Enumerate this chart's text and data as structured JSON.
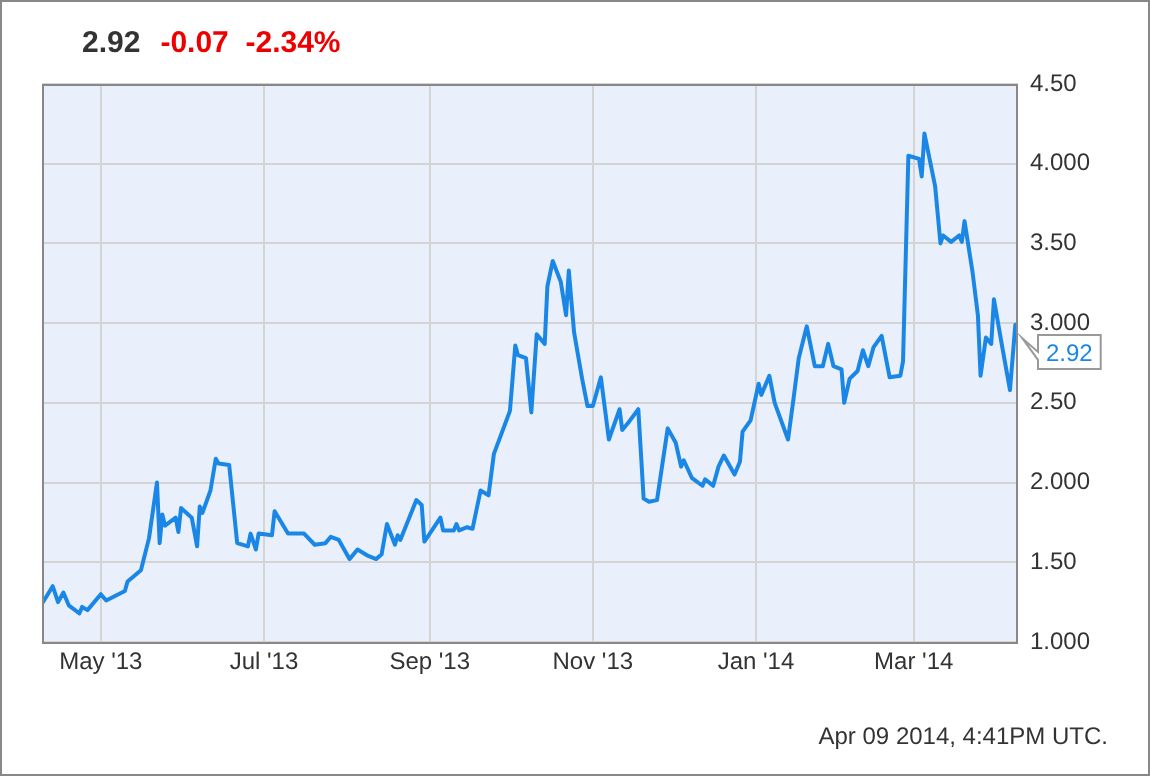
{
  "chart_data": {
    "type": "line",
    "title": "2.92",
    "subtitle": "-0.07  -2.34%",
    "x": [
      "2013-04-09",
      "2013-04-13",
      "2013-04-15",
      "2013-04-17",
      "2013-04-19",
      "2013-04-23",
      "2013-04-24",
      "2013-04-26",
      "2013-05-01",
      "2013-05-03",
      "2013-05-10",
      "2013-05-11",
      "2013-05-16",
      "2013-05-19",
      "2013-05-22",
      "2013-05-23",
      "2013-05-24",
      "2013-05-25",
      "2013-05-29",
      "2013-05-30",
      "2013-05-31",
      "2013-06-04",
      "2013-06-06",
      "2013-06-07",
      "2013-06-08",
      "2013-06-11",
      "2013-06-13",
      "2013-06-14",
      "2013-06-18",
      "2013-06-21",
      "2013-06-25",
      "2013-06-26",
      "2013-06-28",
      "2013-06-29",
      "2013-07-04",
      "2013-07-05",
      "2013-07-10",
      "2013-07-16",
      "2013-07-20",
      "2013-07-24",
      "2013-07-26",
      "2013-07-29",
      "2013-08-02",
      "2013-08-05",
      "2013-08-09",
      "2013-08-12",
      "2013-08-14",
      "2013-08-16",
      "2013-08-19",
      "2013-08-20",
      "2013-08-21",
      "2013-08-27",
      "2013-08-29",
      "2013-08-30",
      "2013-09-05",
      "2013-09-06",
      "2013-09-10",
      "2013-09-11",
      "2013-09-12",
      "2013-09-15",
      "2013-09-17",
      "2013-09-20",
      "2013-09-23",
      "2013-09-25",
      "2013-10-01",
      "2013-10-03",
      "2013-10-04",
      "2013-10-07",
      "2013-10-09",
      "2013-10-11",
      "2013-10-14",
      "2013-10-15",
      "2013-10-17",
      "2013-10-20",
      "2013-10-22",
      "2013-10-23",
      "2013-10-25",
      "2013-10-28",
      "2013-10-30",
      "2013-11-01",
      "2013-11-04",
      "2013-11-07",
      "2013-11-11",
      "2013-11-12",
      "2013-11-14",
      "2013-11-18",
      "2013-11-20",
      "2013-11-22",
      "2013-11-25",
      "2013-11-29",
      "2013-12-02",
      "2013-12-04",
      "2013-12-05",
      "2013-12-08",
      "2013-12-12",
      "2013-12-13",
      "2013-12-16",
      "2013-12-18",
      "2013-12-20",
      "2013-12-24",
      "2013-12-26",
      "2013-12-27",
      "2013-12-30",
      "2014-01-02",
      "2014-01-03",
      "2014-01-06",
      "2014-01-08",
      "2014-01-13",
      "2014-01-15",
      "2014-01-17",
      "2014-01-20",
      "2014-01-23",
      "2014-01-26",
      "2014-01-28",
      "2014-01-30",
      "2014-02-02",
      "2014-02-03",
      "2014-02-05",
      "2014-02-08",
      "2014-02-10",
      "2014-02-12",
      "2014-02-14",
      "2014-02-17",
      "2014-02-20",
      "2014-02-24",
      "2014-02-25",
      "2014-02-27",
      "2014-03-03",
      "2014-03-04",
      "2014-03-05",
      "2014-03-09",
      "2014-03-11",
      "2014-03-12",
      "2014-03-15",
      "2014-03-18",
      "2014-03-19",
      "2014-03-20",
      "2014-03-23",
      "2014-03-25",
      "2014-03-26",
      "2014-03-28",
      "2014-03-30",
      "2014-03-31",
      "2014-04-03",
      "2014-04-06",
      "2014-04-08",
      "2014-04-09"
    ],
    "series": [
      {
        "color": "#1a87e6",
        "values": [
          1.24,
          1.35,
          1.25,
          1.31,
          1.23,
          1.18,
          1.22,
          1.2,
          1.3,
          1.26,
          1.32,
          1.38,
          1.45,
          1.65,
          2.0,
          1.62,
          1.8,
          1.73,
          1.78,
          1.69,
          1.84,
          1.78,
          1.6,
          1.85,
          1.81,
          1.95,
          2.15,
          2.12,
          2.11,
          1.62,
          1.6,
          1.68,
          1.58,
          1.68,
          1.67,
          1.82,
          1.68,
          1.68,
          1.61,
          1.62,
          1.66,
          1.64,
          1.52,
          1.58,
          1.54,
          1.52,
          1.55,
          1.74,
          1.61,
          1.67,
          1.64,
          1.89,
          1.86,
          1.63,
          1.78,
          1.7,
          1.7,
          1.74,
          1.7,
          1.72,
          1.71,
          1.95,
          1.92,
          2.18,
          2.45,
          2.86,
          2.8,
          2.78,
          2.44,
          2.93,
          2.87,
          3.23,
          3.39,
          3.26,
          3.05,
          3.33,
          2.94,
          2.65,
          2.48,
          2.48,
          2.66,
          2.27,
          2.46,
          2.33,
          2.37,
          2.46,
          1.9,
          1.88,
          1.89,
          2.34,
          2.25,
          2.1,
          2.14,
          2.03,
          1.98,
          2.02,
          1.98,
          2.1,
          2.17,
          2.05,
          2.13,
          2.32,
          2.39,
          2.62,
          2.55,
          2.67,
          2.5,
          2.27,
          2.52,
          2.78,
          2.98,
          2.73,
          2.73,
          2.87,
          2.73,
          2.71,
          2.5,
          2.65,
          2.7,
          2.83,
          2.73,
          2.85,
          2.92,
          2.66,
          2.67,
          2.76,
          4.05,
          4.03,
          3.92,
          4.19,
          3.86,
          3.5,
          3.55,
          3.51,
          3.55,
          3.51,
          3.64,
          3.32,
          3.05,
          2.67,
          2.91,
          2.87,
          3.15,
          2.86,
          2.58,
          2.99,
          2.92
        ]
      }
    ],
    "xlim": [
      "2013-04-09",
      "2014-04-09"
    ],
    "xticks": [
      {
        "value": "2013-05-01",
        "label": "May '13"
      },
      {
        "value": "2013-07-01",
        "label": "Jul '13"
      },
      {
        "value": "2013-09-01",
        "label": "Sep '13"
      },
      {
        "value": "2013-11-01",
        "label": "Nov '13"
      },
      {
        "value": "2014-01-01",
        "label": "Jan '14"
      },
      {
        "value": "2014-03-01",
        "label": "Mar '14"
      }
    ],
    "ylim": [
      1,
      4.5
    ],
    "yticks": [
      {
        "value": 1,
        "label": "1.000"
      },
      {
        "value": 1.5,
        "label": "1.50"
      },
      {
        "value": 2,
        "label": "2.000"
      },
      {
        "value": 2.5,
        "label": "2.50"
      },
      {
        "value": 3,
        "label": "3.000"
      },
      {
        "value": 3.5,
        "label": "3.50"
      },
      {
        "value": 4,
        "label": "4.000"
      },
      {
        "value": 4.5,
        "label": "4.50"
      }
    ],
    "grid": true,
    "marker": "none",
    "line_style": "solid",
    "annotations": [
      {
        "text": "2.92",
        "x": "2014-04-09",
        "y": 2.92
      },
      "Apr 09 2014, 4:41PM UTC."
    ]
  }
}
